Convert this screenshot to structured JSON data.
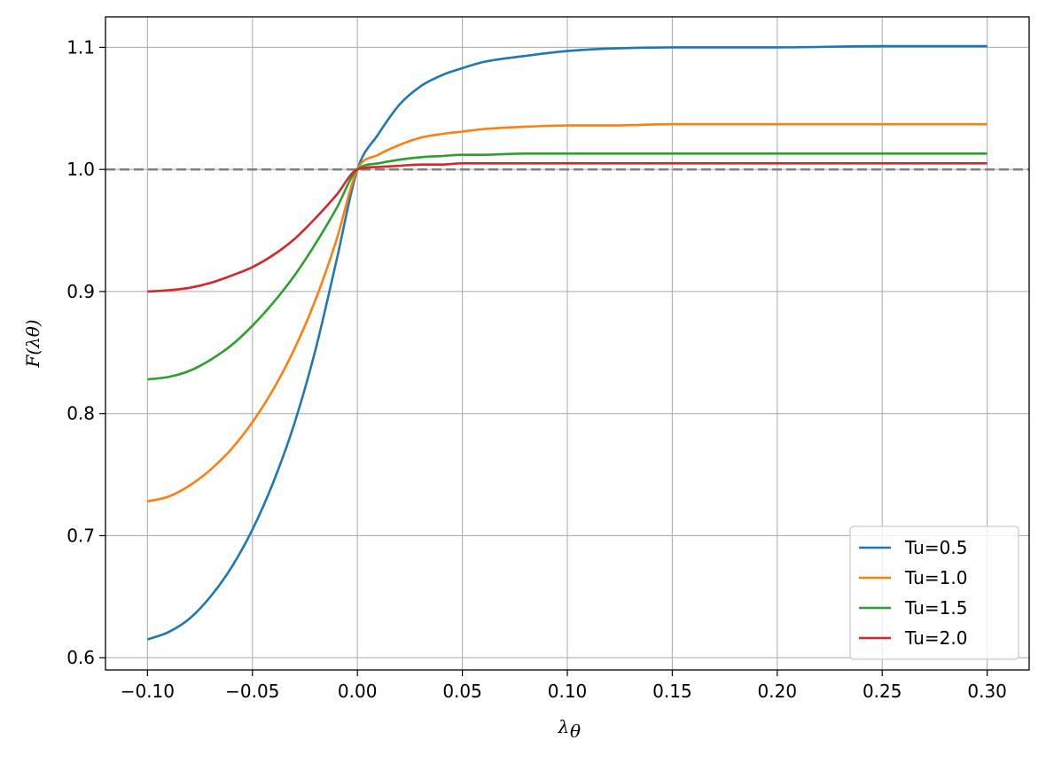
{
  "chart_data": {
    "type": "line",
    "title": "",
    "xlabel": "λθ",
    "ylabel": "F(λθ)",
    "xlim": [
      -0.12,
      0.32
    ],
    "ylim": [
      0.59,
      1.125
    ],
    "xticks": [
      -0.1,
      -0.05,
      0.0,
      0.05,
      0.1,
      0.15,
      0.2,
      0.25,
      0.3
    ],
    "xtick_labels": [
      "−0.10",
      "−0.05",
      "0.00",
      "0.05",
      "0.10",
      "0.15",
      "0.20",
      "0.25",
      "0.30"
    ],
    "yticks": [
      0.6,
      0.7,
      0.8,
      0.9,
      1.0,
      1.1
    ],
    "ytick_labels": [
      "0.6",
      "0.7",
      "0.8",
      "0.9",
      "1.0",
      "1.1"
    ],
    "grid": true,
    "legend_position": "bottom-right",
    "reference_line": {
      "y": 1.0,
      "style": "dashed",
      "color": "#808080"
    },
    "x": [
      -0.1,
      -0.09,
      -0.08,
      -0.07,
      -0.06,
      -0.05,
      -0.04,
      -0.03,
      -0.02,
      -0.01,
      0.0,
      0.01,
      0.02,
      0.03,
      0.04,
      0.05,
      0.06,
      0.08,
      0.1,
      0.12,
      0.15,
      0.2,
      0.25,
      0.3
    ],
    "series": [
      {
        "name": "Tu=0.5",
        "color": "#1f77b4",
        "values": [
          0.615,
          0.621,
          0.632,
          0.65,
          0.674,
          0.705,
          0.744,
          0.792,
          0.852,
          0.925,
          1.0,
          1.029,
          1.053,
          1.068,
          1.077,
          1.083,
          1.088,
          1.093,
          1.097,
          1.099,
          1.1,
          1.1,
          1.101,
          1.101
        ]
      },
      {
        "name": "Tu=1.0",
        "color": "#ff7f0e",
        "values": [
          0.728,
          0.732,
          0.741,
          0.754,
          0.771,
          0.793,
          0.82,
          0.853,
          0.893,
          0.942,
          1.0,
          1.012,
          1.02,
          1.026,
          1.029,
          1.031,
          1.033,
          1.035,
          1.036,
          1.036,
          1.037,
          1.037,
          1.037,
          1.037
        ]
      },
      {
        "name": "Tu=1.5",
        "color": "#2ca02c",
        "values": [
          0.828,
          0.83,
          0.835,
          0.844,
          0.856,
          0.872,
          0.891,
          0.913,
          0.939,
          0.968,
          1.0,
          1.005,
          1.008,
          1.01,
          1.011,
          1.012,
          1.012,
          1.013,
          1.013,
          1.013,
          1.013,
          1.013,
          1.013,
          1.013
        ]
      },
      {
        "name": "Tu=2.0",
        "color": "#d62728",
        "values": [
          0.9,
          0.901,
          0.903,
          0.907,
          0.913,
          0.92,
          0.93,
          0.943,
          0.96,
          0.979,
          1.0,
          1.002,
          1.003,
          1.004,
          1.004,
          1.005,
          1.005,
          1.005,
          1.005,
          1.005,
          1.005,
          1.005,
          1.005,
          1.005
        ]
      }
    ]
  }
}
